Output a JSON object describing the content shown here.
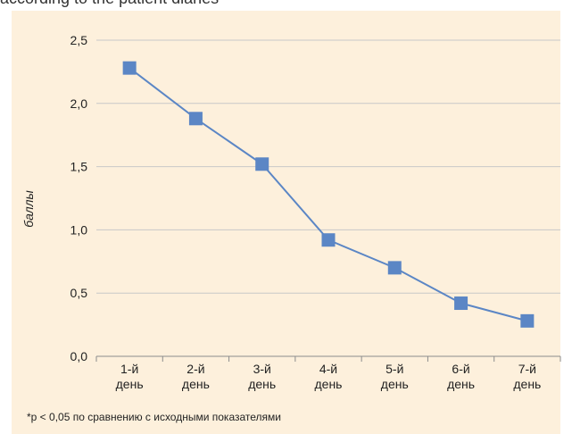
{
  "caption_fragment": "according to the patient diaries",
  "footnote": "*p < 0,05 по сравнению с исходными показателями",
  "colors": {
    "panel_background": "#fdf0dc",
    "series_line": "#5b86c5",
    "marker": "#5b86c5",
    "gridline": "#c8c8c8"
  },
  "chart_data": {
    "type": "line",
    "title": "",
    "xlabel": "",
    "ylabel": "баллы",
    "categories": [
      [
        "1-й",
        "день"
      ],
      [
        "2-й",
        "день"
      ],
      [
        "3-й",
        "день"
      ],
      [
        "4-й",
        "день"
      ],
      [
        "5-й",
        "день"
      ],
      [
        "6-й",
        "день"
      ],
      [
        "7-й",
        "день"
      ]
    ],
    "series": [
      {
        "values": [
          2.28,
          1.88,
          1.52,
          0.92,
          0.7,
          0.42,
          0.28
        ]
      }
    ],
    "ylim": [
      0,
      2.5
    ],
    "yticks": [
      "0,0",
      "0,5",
      "1,0",
      "1,5",
      "2,0",
      "2,5"
    ],
    "ytick_values": [
      0,
      0.5,
      1.0,
      1.5,
      2.0,
      2.5
    ],
    "grid": true,
    "marker": "square"
  }
}
